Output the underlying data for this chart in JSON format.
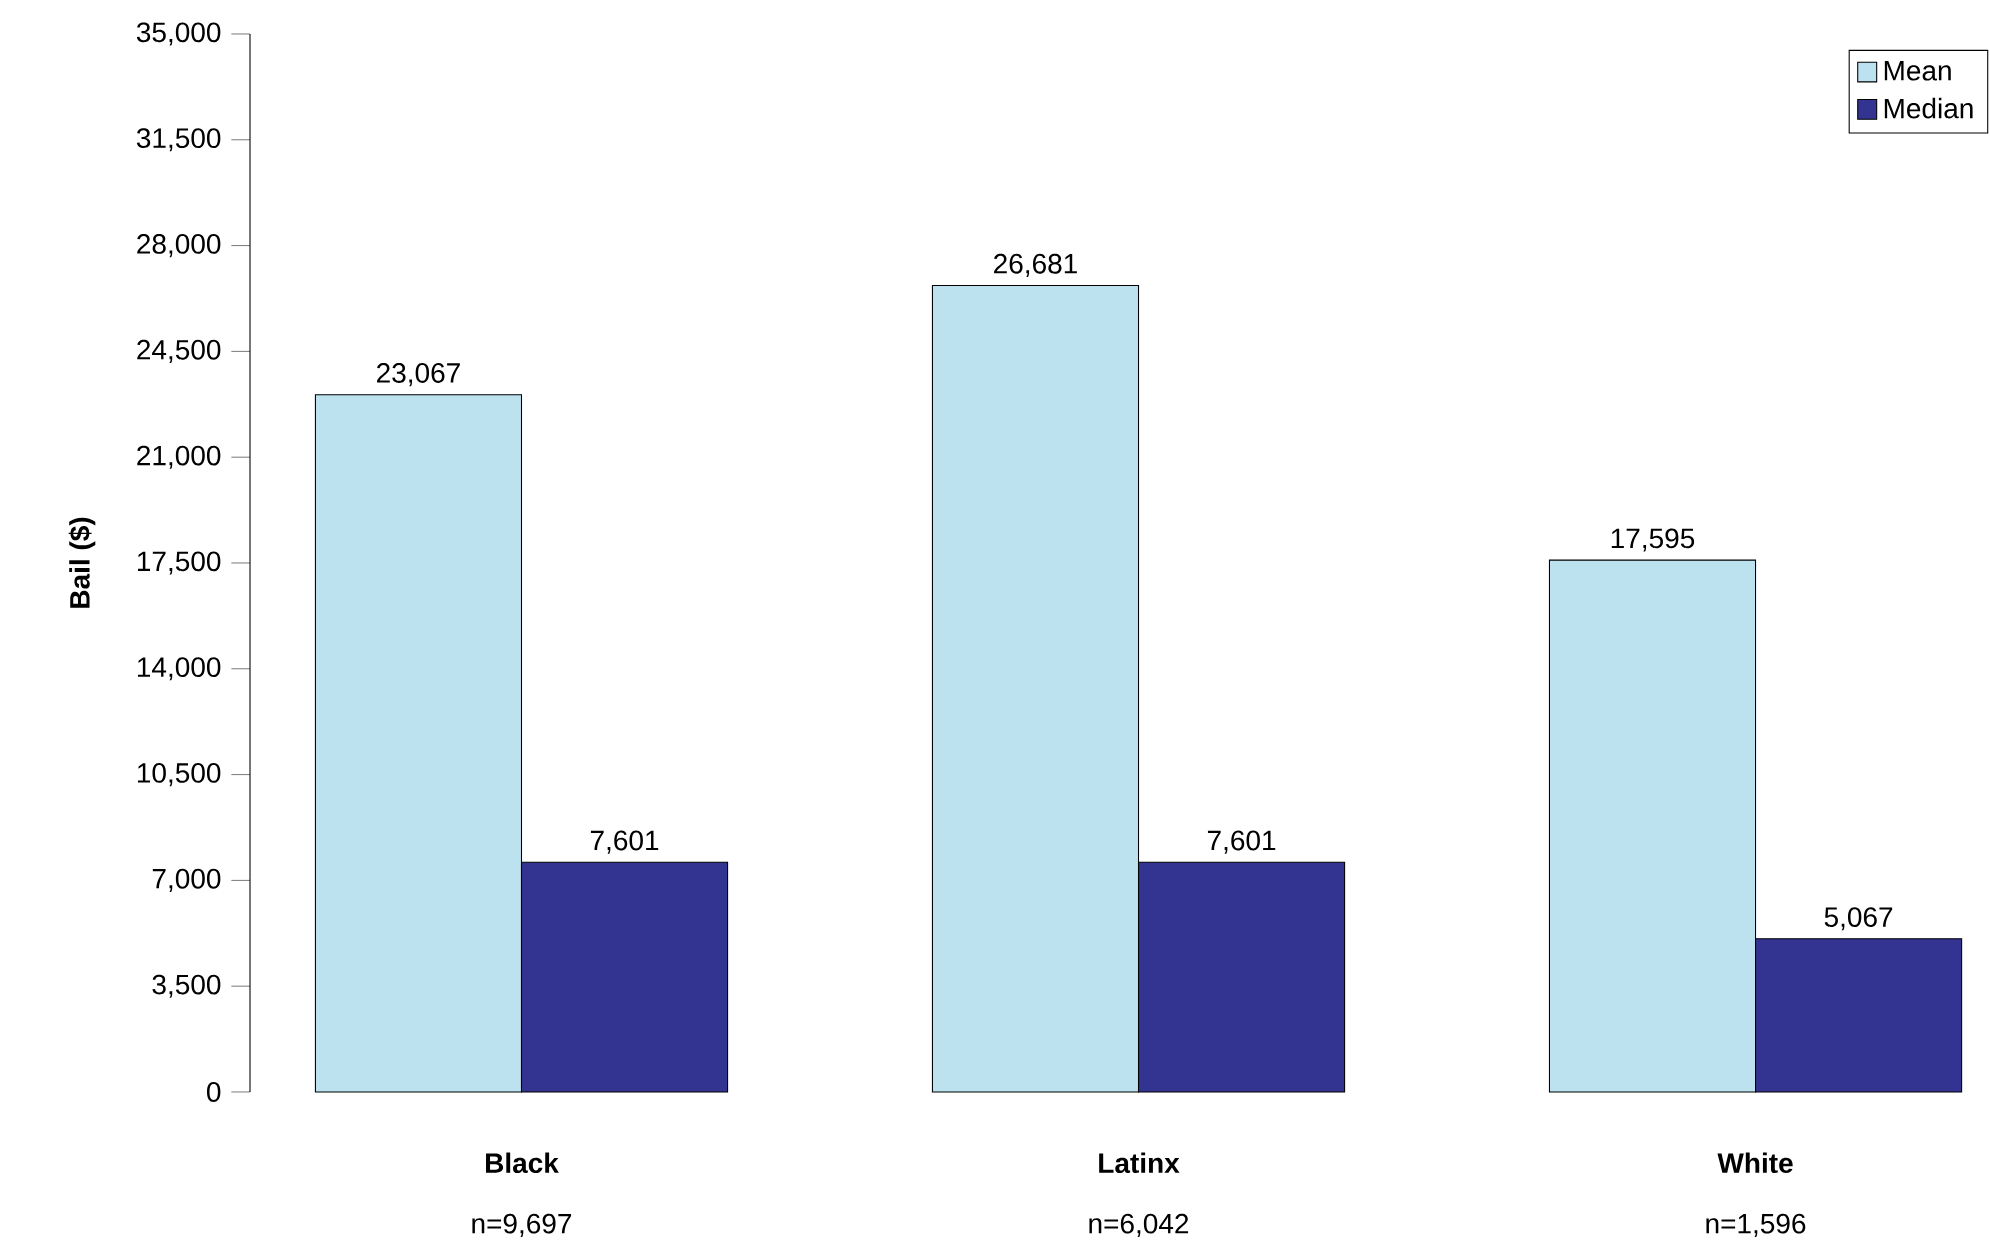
{
  "chart_data": {
    "type": "bar",
    "ylabel": "Bail ($)",
    "categories": [
      "Black",
      "Latinx",
      "White"
    ],
    "series": [
      {
        "name": "Mean",
        "color": "#bde2ef",
        "values": [
          23067,
          26681,
          17595
        ],
        "value_labels": [
          "23,067",
          "26,681",
          "17,595"
        ]
      },
      {
        "name": "Median",
        "color": "#333391",
        "values": [
          7601,
          7601,
          5067
        ],
        "value_labels": [
          "7,601",
          "7,601",
          "5,067"
        ]
      }
    ],
    "ylim": [
      0,
      35000
    ],
    "yticks": [
      0,
      {
        "value": 3500,
        "label": "3,500"
      },
      {
        "value": 7000,
        "label": "7,000"
      },
      {
        "value": 10500,
        "label": "10,500"
      },
      {
        "value": 14000,
        "label": "14,000"
      },
      {
        "value": 17500,
        "label": "17,500"
      },
      {
        "value": 21000,
        "label": "21,000"
      },
      {
        "value": 24500,
        "label": "24,500"
      },
      {
        "value": 28000,
        "label": "28,000"
      },
      {
        "value": 31500,
        "label": "31,500"
      },
      {
        "value": 35000,
        "label": "35,000"
      }
    ],
    "legend": "top right",
    "annotations": [
      "n=9,697",
      "n=6,042",
      "n=1,596"
    ]
  }
}
